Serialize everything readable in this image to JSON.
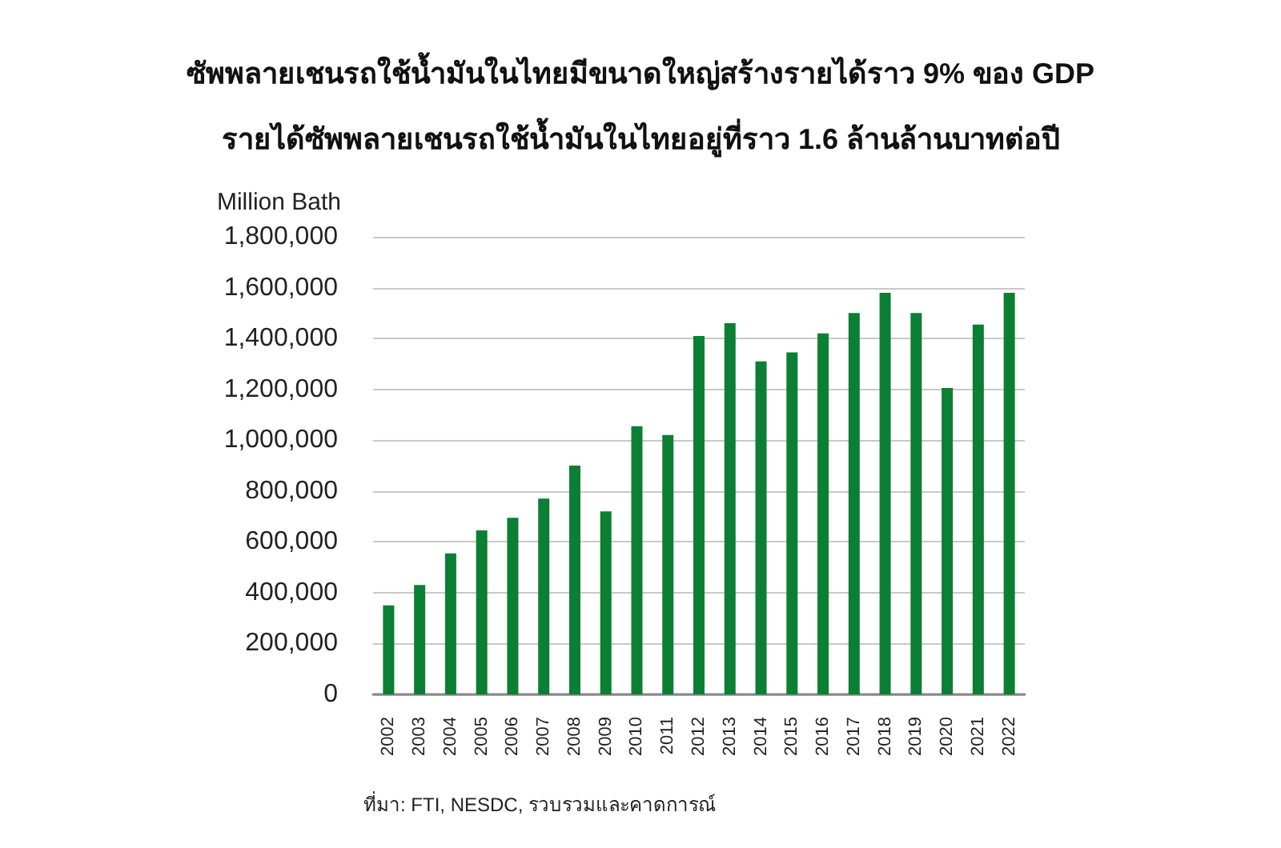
{
  "chart_data": {
    "type": "bar",
    "title": "ซัพพลายเชนรถใช้น้ำมันในไทยมีขนาดใหญ่สร้างรายได้ราว 9% ของ GDP",
    "subtitle": "รายได้ซัพพลายเชนรถใช้น้ำมันในไทยอยู่ที่ราว 1.6 ล้านล้านบาทต่อปี",
    "ylabel": "Million Bath",
    "categories": [
      "2002",
      "2003",
      "2004",
      "2005",
      "2006",
      "2007",
      "2008",
      "2009",
      "2010",
      "2011",
      "2012",
      "2013",
      "2014",
      "2015",
      "2016",
      "2017",
      "2018",
      "2019",
      "2020",
      "2021",
      "2022"
    ],
    "values": [
      350000,
      430000,
      555000,
      645000,
      695000,
      770000,
      900000,
      720000,
      1055000,
      1020000,
      1410000,
      1460000,
      1310000,
      1345000,
      1420000,
      1500000,
      1580000,
      1500000,
      1205000,
      1455000,
      1580000
    ],
    "color": "#0b7f33",
    "ylim": [
      0,
      1800000
    ],
    "yticks": [
      {
        "value": 0,
        "label": "0"
      },
      {
        "value": 200000,
        "label": "200,000"
      },
      {
        "value": 400000,
        "label": "400,000"
      },
      {
        "value": 600000,
        "label": "600,000"
      },
      {
        "value": 800000,
        "label": "800,000"
      },
      {
        "value": 1000000,
        "label": "1,000,000"
      },
      {
        "value": 1200000,
        "label": "1,200,000"
      },
      {
        "value": 1400000,
        "label": "1,400,000"
      },
      {
        "value": 1600000,
        "label": "1,600,000"
      },
      {
        "value": 1800000,
        "label": "1,800,000"
      }
    ],
    "grid": "y",
    "annotations": [
      "ที่มา: FTI, NESDC, รวบรวมและคาดการณ์"
    ]
  }
}
